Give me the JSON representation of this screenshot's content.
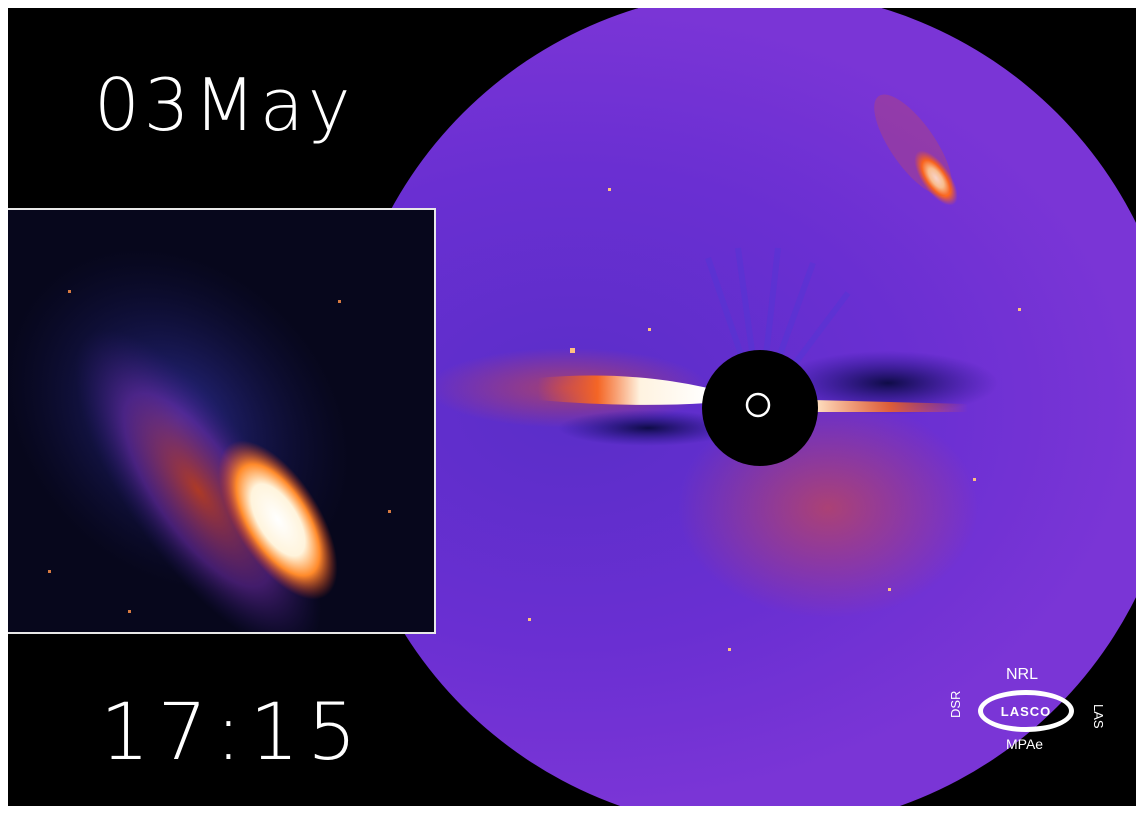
{
  "overlay": {
    "date": "03May",
    "time": "17:15"
  },
  "logo": {
    "top": "NRL",
    "center": "LASCO",
    "bottom": "MPAe",
    "left": "DSR",
    "right": "LAS"
  },
  "colors": {
    "background": "#000000",
    "field": "#6a2bd0",
    "streamer_bright": "#fff7e6",
    "streamer_orange": "#ff6a1a",
    "occulter": "#000000",
    "inset_border": "#e8e8e8"
  }
}
